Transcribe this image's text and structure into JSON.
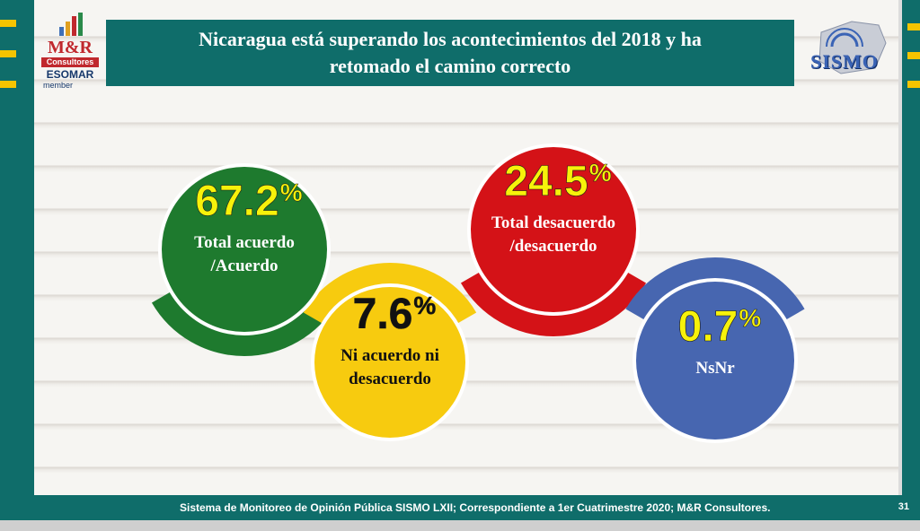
{
  "title": "Nicaragua está superando los acontecimientos del 2018 y ha retomado el camino correcto",
  "logo_left": {
    "name": "M&R",
    "sub": "Consultores",
    "esomar": "ESOMAR",
    "member": "member"
  },
  "logo_right": {
    "name": "SISMO"
  },
  "footer": {
    "text": "Sistema de Monitoreo de Opinión Pública SISMO LXII; Correspondiente a 1er Cuatrimestre 2020; M&R Consultores.",
    "page": "31"
  },
  "colors": {
    "teal": "#0f6d6a",
    "accent_yellow": "#f6c400"
  },
  "chart_data": {
    "type": "pie",
    "unit": "%",
    "categories": [
      "Total acuerdo /Acuerdo",
      "Ni acuerdo ni desacuerdo",
      "Total desacuerdo /desacuerdo",
      "NsNr"
    ],
    "values": [
      67.2,
      7.6,
      24.5,
      0.7
    ],
    "value_labels": [
      "67.2",
      "7.6",
      "24.5",
      "0.7"
    ],
    "label_lines": [
      [
        "Total acuerdo",
        "/Acuerdo"
      ],
      [
        "Ni acuerdo ni",
        "desacuerdo"
      ],
      [
        "Total desacuerdo",
        "/desacuerdo"
      ],
      [
        "NsNr"
      ]
    ],
    "colors": [
      "#1e7a2e",
      "#f7cb0f",
      "#d41217",
      "#4766b0"
    ],
    "number_colors": [
      "#f7f20a",
      "#111111",
      "#f7f20a",
      "#f7f20a"
    ],
    "label_colors": [
      "#ffffff",
      "#111111",
      "#ffffff",
      "#ffffff"
    ]
  }
}
